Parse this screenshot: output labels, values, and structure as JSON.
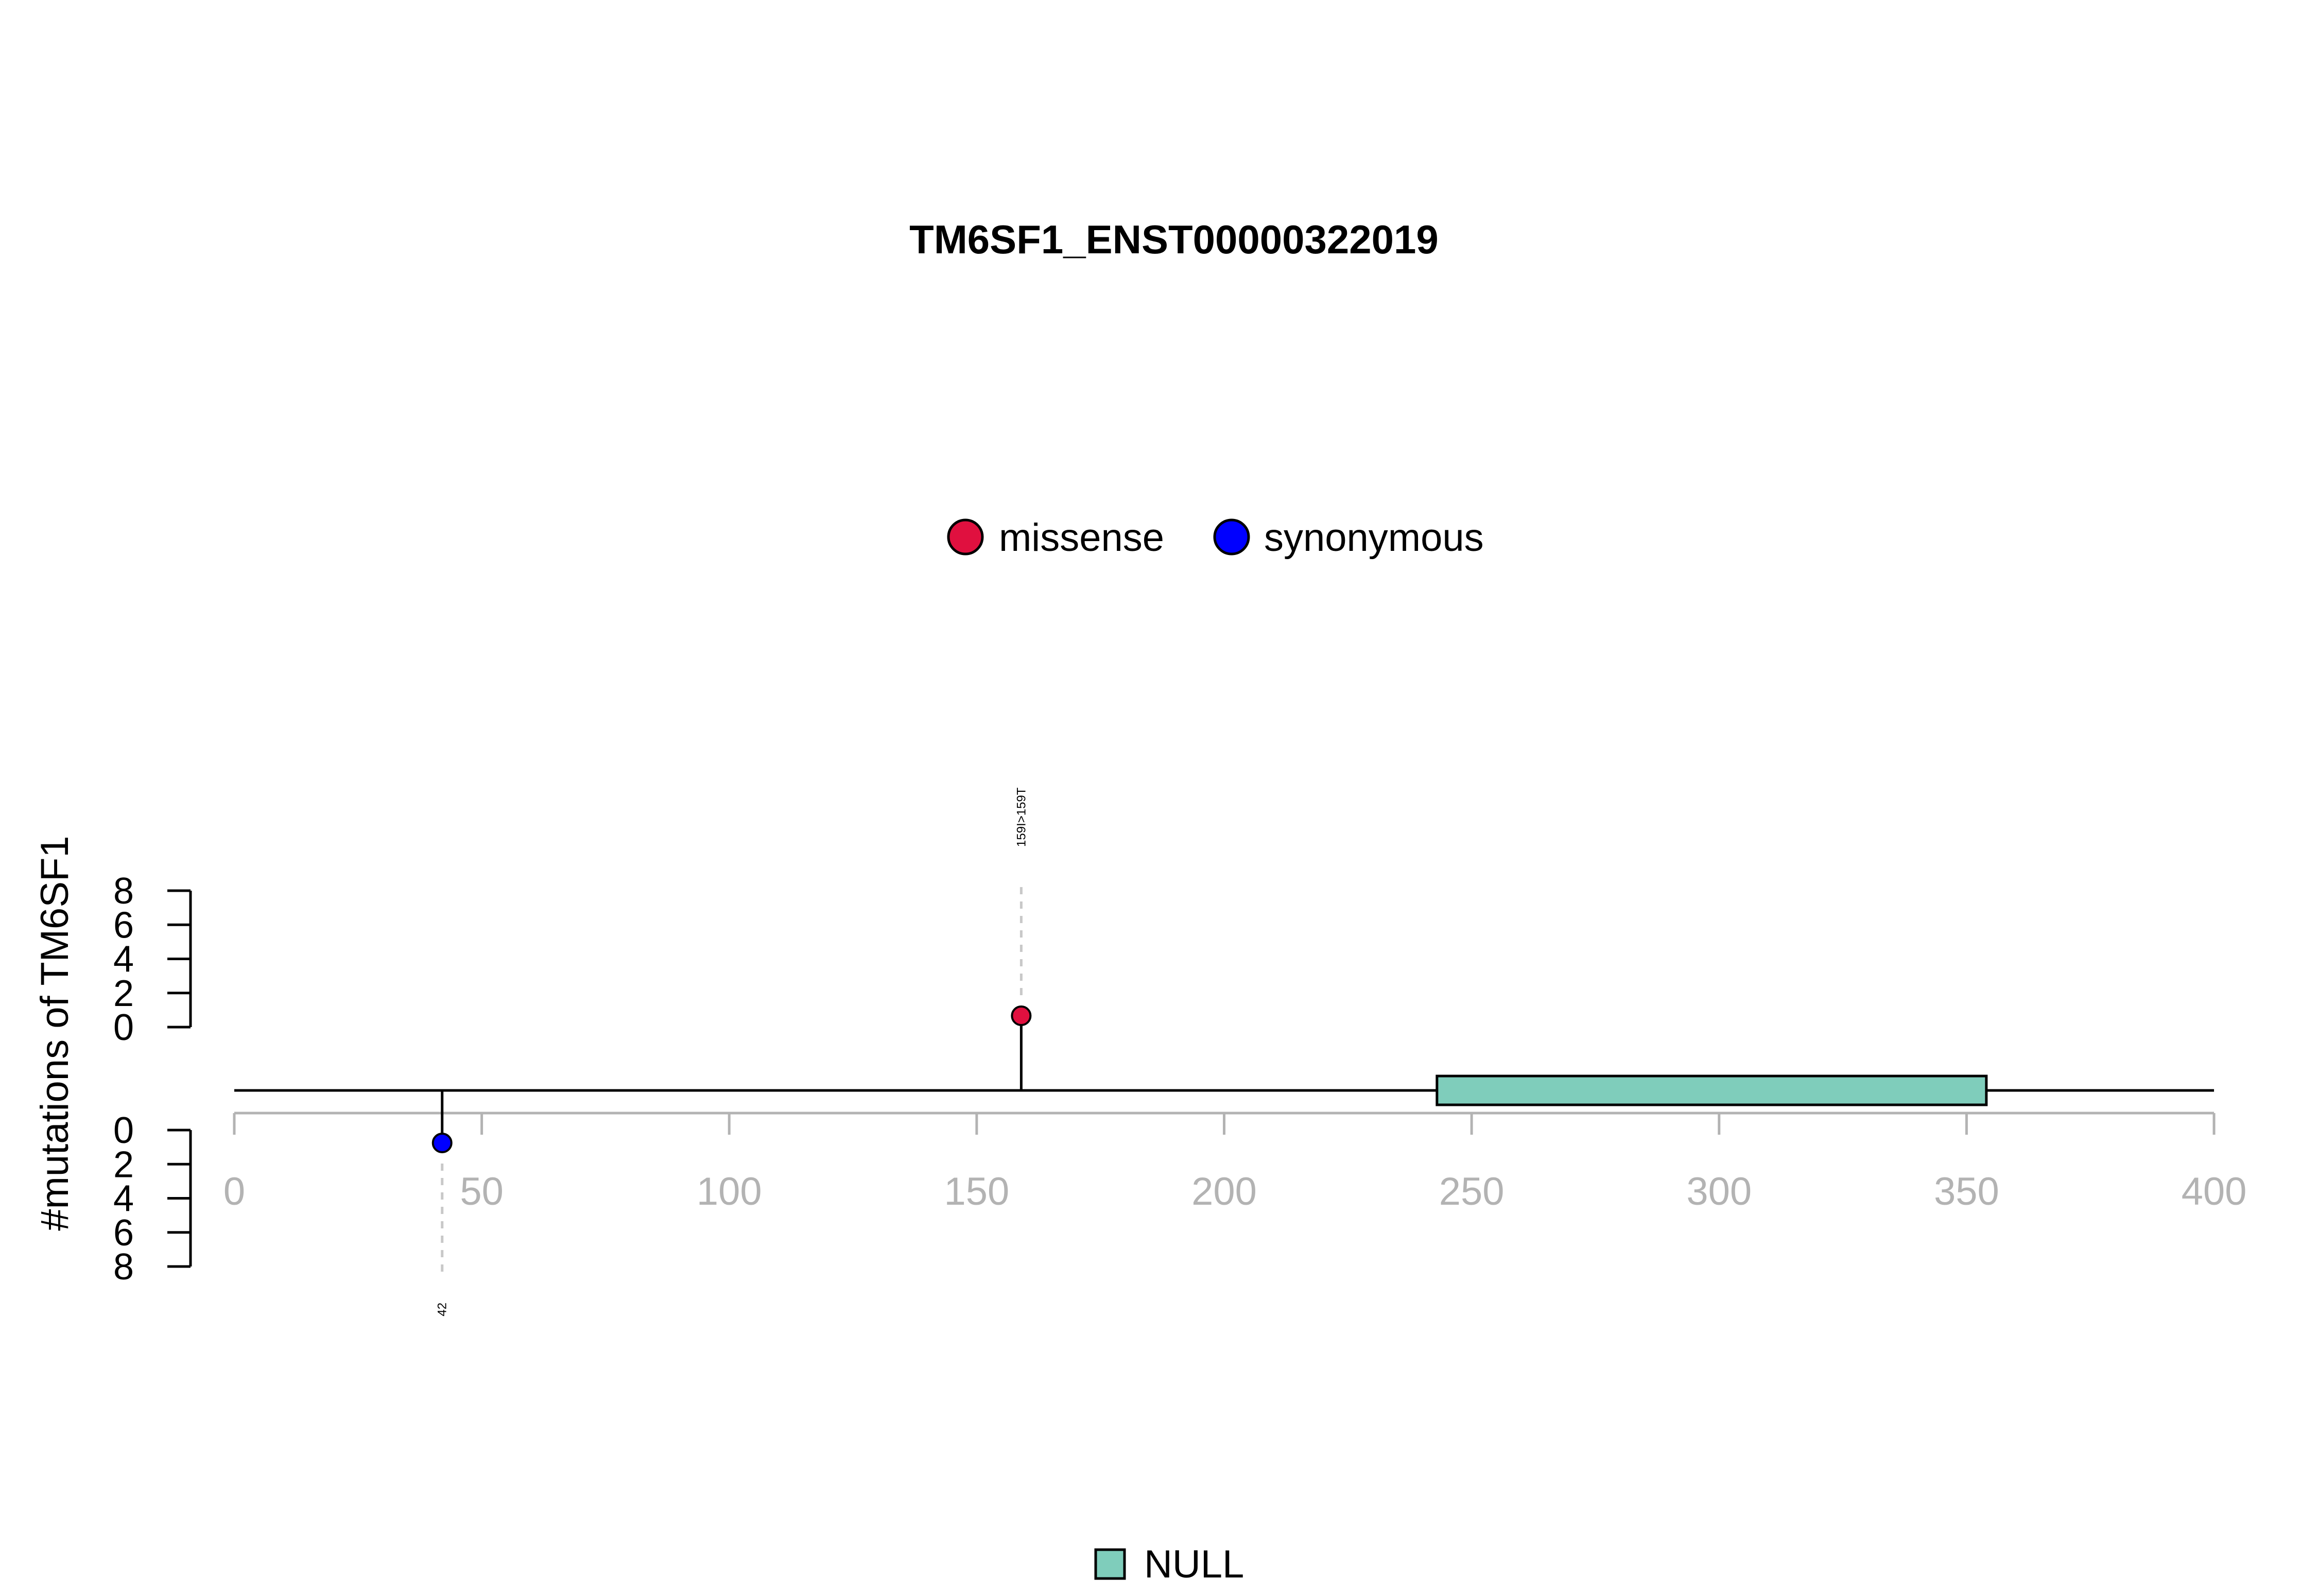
{
  "chart_data": {
    "type": "lollipop",
    "title": "TM6SF1_ENST00000322019",
    "ylabel": "#mutations of TM6SF1",
    "xlim": [
      0,
      400
    ],
    "x_ticks": [
      0,
      50,
      100,
      150,
      200,
      250,
      300,
      350,
      400
    ],
    "y_ticks": [
      0,
      2,
      4,
      6,
      8
    ],
    "ylim": [
      0,
      8
    ],
    "legend_top": [
      {
        "name": "missense",
        "color": "#e0103f"
      },
      {
        "name": "synonymous",
        "color": "#0000ff"
      }
    ],
    "legend_bottom": [
      {
        "name": "NULL",
        "color": "#7fcdbb"
      }
    ],
    "domains": [
      {
        "name": "NULL",
        "start": 243,
        "end": 354,
        "color": "#7fcdbb"
      }
    ],
    "mutations": [
      {
        "position": 159,
        "count": 1,
        "side": "top",
        "type": "missense",
        "label": "159I>159T",
        "color": "#e0103f"
      },
      {
        "position": 42,
        "count": 1,
        "side": "bottom",
        "type": "synonymous",
        "label": "42",
        "color": "#0000ff"
      }
    ]
  }
}
